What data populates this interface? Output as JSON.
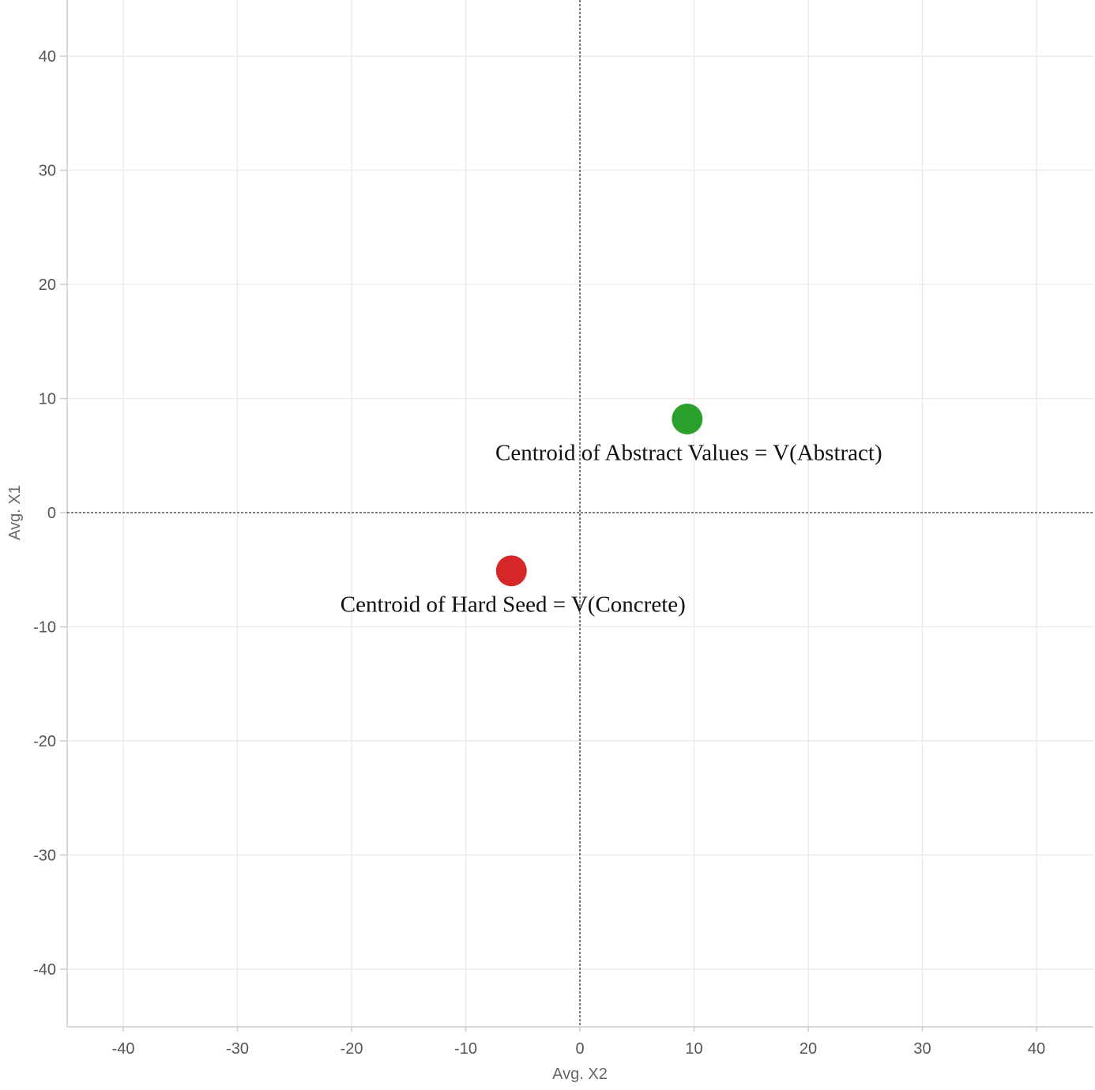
{
  "chart_data": {
    "type": "scatter",
    "title": "",
    "xlabel": "Avg. X2",
    "ylabel": "Avg. X1",
    "xlim": [
      -45,
      45
    ],
    "ylim": [
      -45,
      45
    ],
    "xticks": [
      -40,
      -30,
      -20,
      -10,
      0,
      10,
      20,
      30,
      40
    ],
    "yticks": [
      40,
      30,
      20,
      10,
      0,
      -10,
      -20,
      -30,
      -40
    ],
    "grid": true,
    "reference_lines": {
      "x": 0,
      "y": 0,
      "style": "dashed"
    },
    "points": [
      {
        "x": 9.4,
        "y": 8.2,
        "color": "#2ca02c",
        "label": "Centroid of Abstract Values = V(Abstract)"
      },
      {
        "x": -6.0,
        "y": -5.1,
        "color": "#d62728",
        "label": "Centroid of Hard Seed = V(Concrete)"
      }
    ]
  }
}
